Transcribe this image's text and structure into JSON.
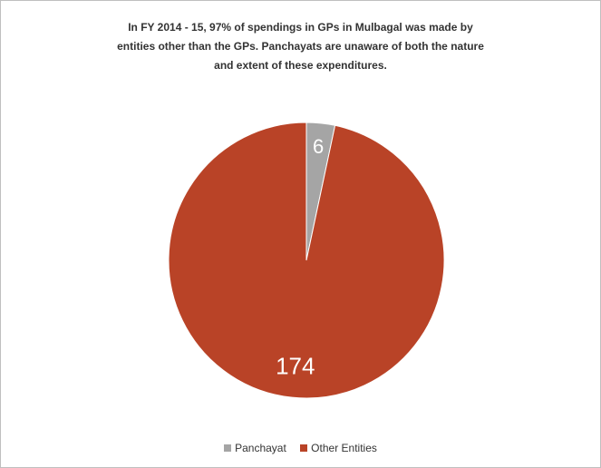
{
  "chart_data": {
    "type": "pie",
    "title_lines": [
      "In FY 2014 - 15, 97% of spendings in GPs in Mulbagal was made by",
      "entities other than the GPs. Panchayats are unaware of both the nature",
      "and extent of these expenditures."
    ],
    "categories": [
      "Panchayat",
      "Other Entities"
    ],
    "values": [
      6,
      174
    ],
    "colors": [
      "#a5a5a5",
      "#b94327"
    ],
    "data_labels": [
      "6",
      "174"
    ],
    "legend_position": "bottom"
  }
}
